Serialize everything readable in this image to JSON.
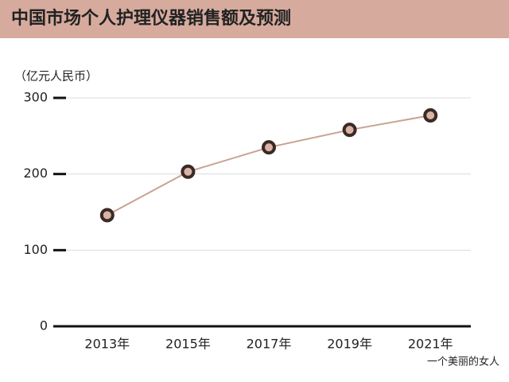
{
  "chart_data": {
    "type": "line",
    "title": "中国市场个人护理仪器销售额及预测",
    "y_label": "（亿元人民币）",
    "categories": [
      "2013年",
      "2015年",
      "2017年",
      "2019年",
      "2021年"
    ],
    "values": [
      146,
      203,
      235,
      258,
      277
    ],
    "color": "#c9a292",
    "ylim": [
      0,
      300
    ],
    "yticks": [
      0,
      100,
      200,
      300
    ],
    "grid": true,
    "watermark": "一个美丽的女人"
  }
}
